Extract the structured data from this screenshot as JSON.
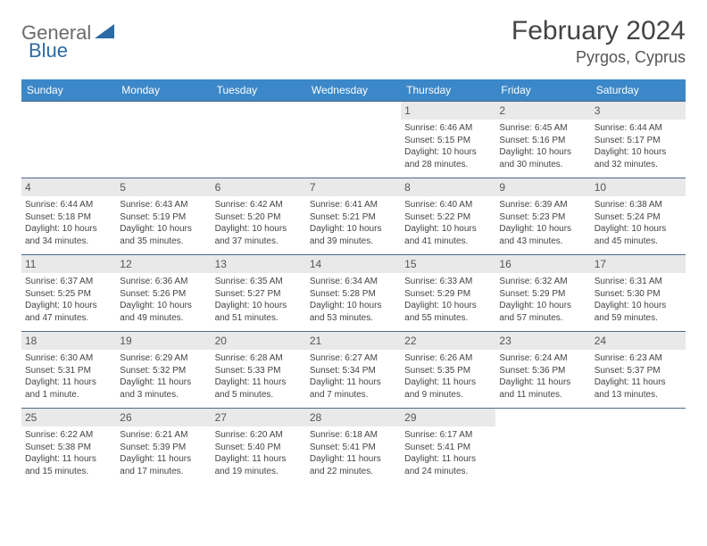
{
  "brand": {
    "part1": "General",
    "part2": "Blue"
  },
  "title": "February 2024",
  "location": "Pyrgos, Cyprus",
  "colors": {
    "header_bg": "#3b87c8",
    "header_text": "#ffffff",
    "cell_border": "#4a6a8a",
    "daynum_bg": "#e9e9e9",
    "brand_gray": "#6b6b6b",
    "brand_blue": "#2c6aa6"
  },
  "weekdays": [
    "Sunday",
    "Monday",
    "Tuesday",
    "Wednesday",
    "Thursday",
    "Friday",
    "Saturday"
  ],
  "grid": [
    [
      null,
      null,
      null,
      null,
      {
        "n": "1",
        "sr": "Sunrise: 6:46 AM",
        "ss": "Sunset: 5:15 PM",
        "dl": "Daylight: 10 hours and 28 minutes."
      },
      {
        "n": "2",
        "sr": "Sunrise: 6:45 AM",
        "ss": "Sunset: 5:16 PM",
        "dl": "Daylight: 10 hours and 30 minutes."
      },
      {
        "n": "3",
        "sr": "Sunrise: 6:44 AM",
        "ss": "Sunset: 5:17 PM",
        "dl": "Daylight: 10 hours and 32 minutes."
      }
    ],
    [
      {
        "n": "4",
        "sr": "Sunrise: 6:44 AM",
        "ss": "Sunset: 5:18 PM",
        "dl": "Daylight: 10 hours and 34 minutes."
      },
      {
        "n": "5",
        "sr": "Sunrise: 6:43 AM",
        "ss": "Sunset: 5:19 PM",
        "dl": "Daylight: 10 hours and 35 minutes."
      },
      {
        "n": "6",
        "sr": "Sunrise: 6:42 AM",
        "ss": "Sunset: 5:20 PM",
        "dl": "Daylight: 10 hours and 37 minutes."
      },
      {
        "n": "7",
        "sr": "Sunrise: 6:41 AM",
        "ss": "Sunset: 5:21 PM",
        "dl": "Daylight: 10 hours and 39 minutes."
      },
      {
        "n": "8",
        "sr": "Sunrise: 6:40 AM",
        "ss": "Sunset: 5:22 PM",
        "dl": "Daylight: 10 hours and 41 minutes."
      },
      {
        "n": "9",
        "sr": "Sunrise: 6:39 AM",
        "ss": "Sunset: 5:23 PM",
        "dl": "Daylight: 10 hours and 43 minutes."
      },
      {
        "n": "10",
        "sr": "Sunrise: 6:38 AM",
        "ss": "Sunset: 5:24 PM",
        "dl": "Daylight: 10 hours and 45 minutes."
      }
    ],
    [
      {
        "n": "11",
        "sr": "Sunrise: 6:37 AM",
        "ss": "Sunset: 5:25 PM",
        "dl": "Daylight: 10 hours and 47 minutes."
      },
      {
        "n": "12",
        "sr": "Sunrise: 6:36 AM",
        "ss": "Sunset: 5:26 PM",
        "dl": "Daylight: 10 hours and 49 minutes."
      },
      {
        "n": "13",
        "sr": "Sunrise: 6:35 AM",
        "ss": "Sunset: 5:27 PM",
        "dl": "Daylight: 10 hours and 51 minutes."
      },
      {
        "n": "14",
        "sr": "Sunrise: 6:34 AM",
        "ss": "Sunset: 5:28 PM",
        "dl": "Daylight: 10 hours and 53 minutes."
      },
      {
        "n": "15",
        "sr": "Sunrise: 6:33 AM",
        "ss": "Sunset: 5:29 PM",
        "dl": "Daylight: 10 hours and 55 minutes."
      },
      {
        "n": "16",
        "sr": "Sunrise: 6:32 AM",
        "ss": "Sunset: 5:29 PM",
        "dl": "Daylight: 10 hours and 57 minutes."
      },
      {
        "n": "17",
        "sr": "Sunrise: 6:31 AM",
        "ss": "Sunset: 5:30 PM",
        "dl": "Daylight: 10 hours and 59 minutes."
      }
    ],
    [
      {
        "n": "18",
        "sr": "Sunrise: 6:30 AM",
        "ss": "Sunset: 5:31 PM",
        "dl": "Daylight: 11 hours and 1 minute."
      },
      {
        "n": "19",
        "sr": "Sunrise: 6:29 AM",
        "ss": "Sunset: 5:32 PM",
        "dl": "Daylight: 11 hours and 3 minutes."
      },
      {
        "n": "20",
        "sr": "Sunrise: 6:28 AM",
        "ss": "Sunset: 5:33 PM",
        "dl": "Daylight: 11 hours and 5 minutes."
      },
      {
        "n": "21",
        "sr": "Sunrise: 6:27 AM",
        "ss": "Sunset: 5:34 PM",
        "dl": "Daylight: 11 hours and 7 minutes."
      },
      {
        "n": "22",
        "sr": "Sunrise: 6:26 AM",
        "ss": "Sunset: 5:35 PM",
        "dl": "Daylight: 11 hours and 9 minutes."
      },
      {
        "n": "23",
        "sr": "Sunrise: 6:24 AM",
        "ss": "Sunset: 5:36 PM",
        "dl": "Daylight: 11 hours and 11 minutes."
      },
      {
        "n": "24",
        "sr": "Sunrise: 6:23 AM",
        "ss": "Sunset: 5:37 PM",
        "dl": "Daylight: 11 hours and 13 minutes."
      }
    ],
    [
      {
        "n": "25",
        "sr": "Sunrise: 6:22 AM",
        "ss": "Sunset: 5:38 PM",
        "dl": "Daylight: 11 hours and 15 minutes."
      },
      {
        "n": "26",
        "sr": "Sunrise: 6:21 AM",
        "ss": "Sunset: 5:39 PM",
        "dl": "Daylight: 11 hours and 17 minutes."
      },
      {
        "n": "27",
        "sr": "Sunrise: 6:20 AM",
        "ss": "Sunset: 5:40 PM",
        "dl": "Daylight: 11 hours and 19 minutes."
      },
      {
        "n": "28",
        "sr": "Sunrise: 6:18 AM",
        "ss": "Sunset: 5:41 PM",
        "dl": "Daylight: 11 hours and 22 minutes."
      },
      {
        "n": "29",
        "sr": "Sunrise: 6:17 AM",
        "ss": "Sunset: 5:41 PM",
        "dl": "Daylight: 11 hours and 24 minutes."
      },
      null,
      null
    ]
  ]
}
